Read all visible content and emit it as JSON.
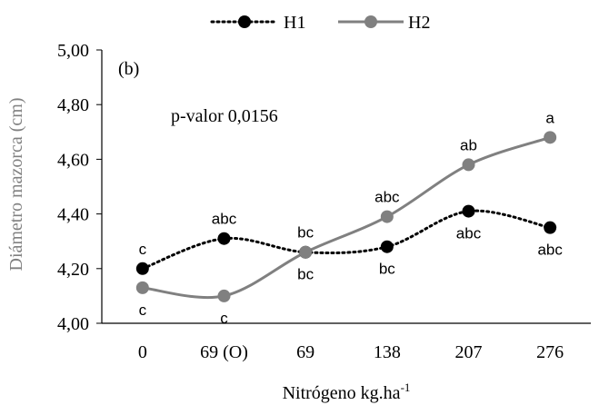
{
  "chart_data": {
    "type": "line",
    "panel_label": "(b)",
    "annotation": "p-valor 0,0156",
    "xlabel": "Nitrógeno kg.ha",
    "xlabel_sup": "-1",
    "ylabel": "Diámetro mazorca (cm)",
    "categories": [
      "0",
      "69 (O)",
      "69",
      "138",
      "207",
      "276"
    ],
    "ylim": [
      4.0,
      5.0
    ],
    "yticks": [
      "4,00",
      "4,20",
      "4,40",
      "4,60",
      "4,80",
      "5,00"
    ],
    "ytick_values": [
      4.0,
      4.2,
      4.4,
      4.6,
      4.8,
      5.0
    ],
    "grid": false,
    "legend_position": "top-center",
    "series": [
      {
        "name": "H1",
        "style": "dotted",
        "color": "#000000",
        "marker_color": "#000000",
        "values": [
          4.2,
          4.31,
          4.26,
          4.28,
          4.41,
          4.35
        ],
        "labels": [
          "c",
          "abc",
          "bc",
          "bc",
          "abc",
          "abc"
        ]
      },
      {
        "name": "H2",
        "style": "solid",
        "color": "#808080",
        "marker_color": "#808080",
        "values": [
          4.13,
          4.1,
          4.26,
          4.39,
          4.58,
          4.68
        ],
        "labels": [
          "c",
          "c",
          "bc",
          "abc",
          "ab",
          "a"
        ]
      }
    ]
  }
}
